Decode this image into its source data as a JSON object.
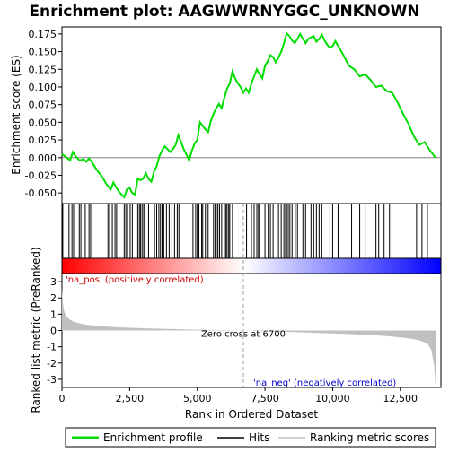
{
  "chart_data": {
    "type": "line",
    "title": "Enrichment plot: AAGWWRNYGGC_UNKNOWN",
    "top_panel": {
      "ylabel": "Enrichment score (ES)",
      "ylim": [
        -0.065,
        0.185
      ],
      "yticks": [
        -0.05,
        -0.025,
        0.0,
        0.025,
        0.05,
        0.075,
        0.1,
        0.125,
        0.15,
        0.175
      ],
      "ytick_labels": [
        "-0.050",
        "-0.025",
        "0.000",
        "0.025",
        "0.050",
        "0.075",
        "0.100",
        "0.125",
        "0.150",
        "0.175"
      ],
      "series": [
        {
          "name": "Enrichment profile",
          "color": "#00dd00",
          "x": [
            0,
            150,
            300,
            400,
            500,
            650,
            800,
            900,
            1000,
            1100,
            1300,
            1500,
            1650,
            1800,
            1900,
            2000,
            2150,
            2300,
            2400,
            2500,
            2600,
            2700,
            2800,
            2900,
            3000,
            3100,
            3200,
            3300,
            3400,
            3500,
            3600,
            3700,
            3800,
            3900,
            4000,
            4100,
            4200,
            4300,
            4400,
            4500,
            4600,
            4700,
            4800,
            4900,
            5000,
            5100,
            5200,
            5300,
            5400,
            5500,
            5600,
            5700,
            5800,
            5900,
            6000,
            6100,
            6200,
            6300,
            6400,
            6500,
            6600,
            6700,
            6800,
            6900,
            7000,
            7100,
            7200,
            7300,
            7400,
            7500,
            7600,
            7700,
            7800,
            7900,
            8000,
            8100,
            8200,
            8300,
            8400,
            8500,
            8600,
            8700,
            8800,
            8900,
            9000,
            9100,
            9200,
            9300,
            9400,
            9500,
            9600,
            9700,
            9800,
            9900,
            10000,
            10100,
            10200,
            10400,
            10600,
            10800,
            11000,
            11200,
            11400,
            11600,
            11800,
            12000,
            12200,
            12400,
            12600,
            12800,
            13000,
            13200,
            13400,
            13600,
            13800
          ],
          "y": [
            0.005,
            0.001,
            -0.004,
            0.008,
            0.002,
            -0.004,
            -0.002,
            -0.006,
            -0.001,
            -0.006,
            -0.018,
            -0.028,
            -0.038,
            -0.045,
            -0.035,
            -0.042,
            -0.05,
            -0.056,
            -0.045,
            -0.043,
            -0.05,
            -0.052,
            -0.03,
            -0.032,
            -0.03,
            -0.022,
            -0.03,
            -0.034,
            -0.02,
            -0.012,
            0.002,
            0.01,
            0.016,
            0.012,
            0.008,
            0.012,
            0.018,
            0.032,
            0.022,
            0.012,
            0.004,
            -0.004,
            0.01,
            0.02,
            0.025,
            0.05,
            0.045,
            0.04,
            0.036,
            0.052,
            0.062,
            0.07,
            0.076,
            0.07,
            0.085,
            0.098,
            0.105,
            0.122,
            0.112,
            0.105,
            0.1,
            0.092,
            0.098,
            0.092,
            0.105,
            0.115,
            0.125,
            0.118,
            0.112,
            0.13,
            0.136,
            0.145,
            0.142,
            0.135,
            0.142,
            0.15,
            0.162,
            0.176,
            0.172,
            0.166,
            0.162,
            0.168,
            0.175,
            0.168,
            0.162,
            0.168,
            0.17,
            0.172,
            0.164,
            0.168,
            0.174,
            0.166,
            0.16,
            0.155,
            0.158,
            0.165,
            0.158,
            0.145,
            0.13,
            0.125,
            0.115,
            0.118,
            0.11,
            0.1,
            0.102,
            0.094,
            0.092,
            0.078,
            0.062,
            0.048,
            0.03,
            0.018,
            0.022,
            0.01,
            0.0
          ]
        }
      ]
    },
    "hits": {
      "name": "Hits",
      "positions": [
        30,
        260,
        370,
        430,
        640,
        700,
        860,
        1000,
        1060,
        1700,
        1760,
        1860,
        1960,
        2020,
        2300,
        2360,
        2420,
        2520,
        2600,
        2800,
        2860,
        2900,
        2960,
        3020,
        3060,
        3200,
        3420,
        3500,
        3580,
        3640,
        3700,
        3760,
        3860,
        3960,
        4060,
        4160,
        4260,
        4320,
        4360,
        4840,
        4940,
        5000,
        5060,
        5160,
        5200,
        5300,
        5400,
        5600,
        5660,
        5700,
        5760,
        5820,
        5900,
        6000,
        6060,
        6100,
        6160,
        6200,
        6300,
        6820,
        7000,
        7100,
        7200,
        7260,
        7300,
        7500,
        7620,
        7700,
        7800,
        8000,
        8100,
        8200,
        8260,
        8300,
        8360,
        8420,
        8500,
        8620,
        8700,
        8900,
        9000,
        9200,
        9300,
        9400,
        9500,
        9600,
        9900,
        10000,
        10200,
        10700,
        11000,
        11200,
        11600,
        11700,
        11900,
        12100,
        13100,
        13300,
        13500
      ]
    },
    "ranking_bar": {
      "name": "Ranking metric scores",
      "colors_left_to_right": [
        "#ff0000",
        "#ffffff",
        "#0000ff"
      ],
      "pos_label": "'na_pos' (positively correlated)",
      "neg_label": "'na_neg' (negatively correlated)"
    },
    "bottom_panel": {
      "ylabel": "Ranked list metric (PreRanked)",
      "ylim": [
        -3.5,
        3.5
      ],
      "yticks": [
        -3,
        -2,
        -1,
        0,
        1,
        2,
        3
      ],
      "ytick_labels": [
        "-3",
        "-2",
        "-1",
        "0",
        "1",
        "2",
        "3"
      ],
      "series": [
        {
          "name": "Ranking metric scores",
          "color": "#c0c0c0",
          "x": [
            0,
            30,
            80,
            150,
            300,
            500,
            800,
            1200,
            2000,
            3000,
            4000,
            5000,
            6000,
            6700,
            7500,
            8500,
            9500,
            10500,
            11500,
            12200,
            12800,
            13200,
            13500,
            13650,
            13750,
            13800
          ],
          "y": [
            2.6,
            1.7,
            1.2,
            0.9,
            0.65,
            0.5,
            0.38,
            0.3,
            0.2,
            0.14,
            0.09,
            0.05,
            0.02,
            0.0,
            -0.04,
            -0.09,
            -0.15,
            -0.21,
            -0.29,
            -0.37,
            -0.48,
            -0.6,
            -0.8,
            -1.2,
            -2.2,
            -3.4
          ]
        }
      ],
      "zero_cross_label": "Zero cross at 6700",
      "zero_cross": 6700
    },
    "xlabel": "Rank in Ordered Dataset",
    "xlim": [
      0,
      14000
    ],
    "xticks": [
      0,
      2500,
      5000,
      7500,
      10000,
      12500
    ],
    "xtick_labels": [
      "0",
      "2,500",
      "5,000",
      "7,500",
      "10,000",
      "12,500"
    ],
    "legend": {
      "placement": "bottom",
      "entries": [
        {
          "label": "Enrichment profile",
          "color": "#00dd00"
        },
        {
          "label": "Hits",
          "color": "#000000"
        },
        {
          "label": "Ranking metric scores",
          "color": "#c0c0c0"
        }
      ]
    }
  }
}
